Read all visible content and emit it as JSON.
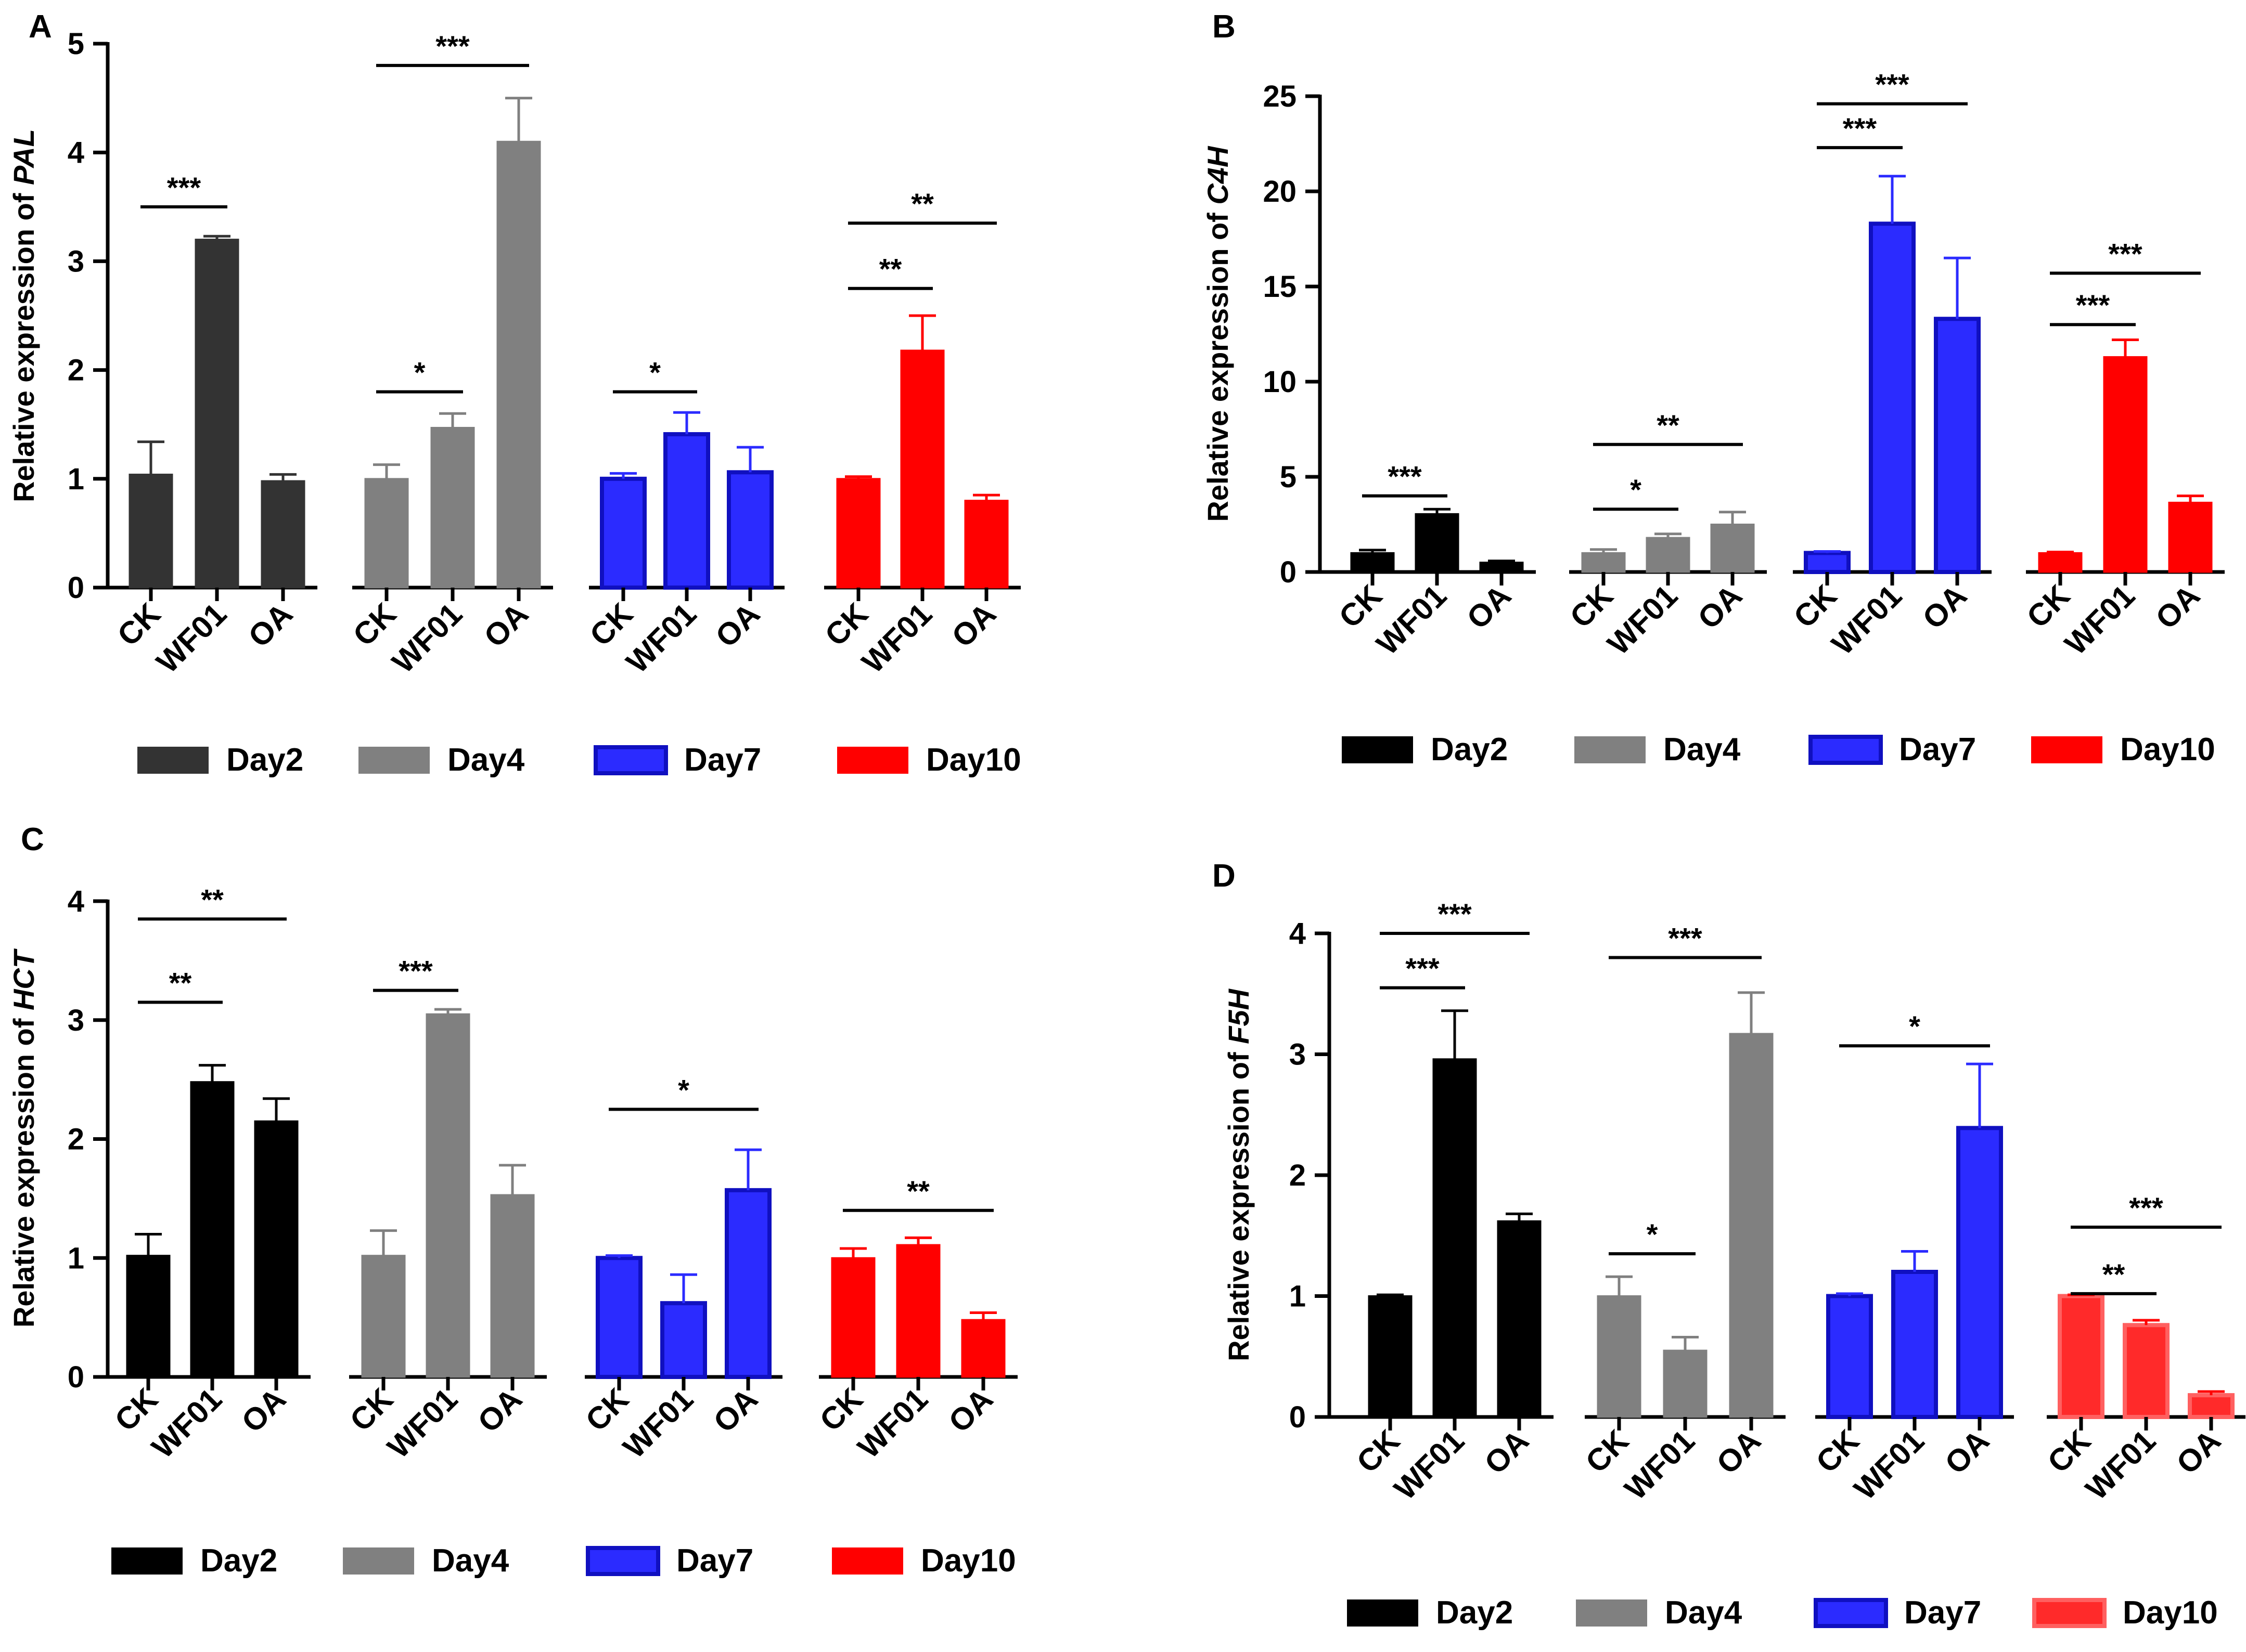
{
  "chart_data": [
    {
      "panel": "A",
      "type": "bar",
      "ylabel_prefix": "Relative expression of ",
      "gene": "PAL",
      "ylim": [
        0,
        5
      ],
      "yticks": [
        0,
        1,
        2,
        3,
        4,
        5
      ],
      "categories": [
        "CK",
        "WF01",
        "OA"
      ],
      "series": [
        {
          "name": "Day2",
          "color": "#333333",
          "fill": "solid",
          "values": [
            1.04,
            3.2,
            0.98
          ],
          "errors": [
            0.3,
            0.03,
            0.06
          ]
        },
        {
          "name": "Day4",
          "color": "#808080",
          "fill": "solid",
          "values": [
            1.0,
            1.47,
            4.1
          ],
          "errors": [
            0.13,
            0.13,
            0.4
          ]
        },
        {
          "name": "Day7",
          "color": "#2b2bff",
          "fill": "outline",
          "values": [
            1.0,
            1.41,
            1.06
          ],
          "errors": [
            0.05,
            0.2,
            0.23
          ]
        },
        {
          "name": "Day10",
          "color": "#ff0000",
          "fill": "solid",
          "values": [
            1.0,
            2.18,
            0.8
          ],
          "errors": [
            0.02,
            0.32,
            0.05
          ]
        }
      ],
      "significance": [
        {
          "group": 0,
          "from": 0,
          "to": 1,
          "y": 3.5,
          "label": "***"
        },
        {
          "group": 1,
          "from": 0,
          "to": 1,
          "y": 1.8,
          "label": "*"
        },
        {
          "group": 1,
          "from": 0,
          "to": 2,
          "y": 4.8,
          "label": "***"
        },
        {
          "group": 2,
          "from": 0,
          "to": 1,
          "y": 1.8,
          "label": "*"
        },
        {
          "group": 3,
          "from": 0,
          "to": 1,
          "y": 2.75,
          "label": "**"
        },
        {
          "group": 3,
          "from": 0,
          "to": 2,
          "y": 3.35,
          "label": "**"
        }
      ]
    },
    {
      "panel": "B",
      "type": "bar",
      "ylabel_prefix": "Relative expression of ",
      "gene": "C4H",
      "ylim": [
        0,
        25
      ],
      "yticks": [
        0,
        5,
        10,
        15,
        20,
        25
      ],
      "categories": [
        "CK",
        "WF01",
        "OA"
      ],
      "series": [
        {
          "name": "Day2",
          "color": "#000000",
          "fill": "solid",
          "values": [
            1.0,
            3.05,
            0.5
          ],
          "errors": [
            0.15,
            0.25,
            0.08
          ]
        },
        {
          "name": "Day4",
          "color": "#808080",
          "fill": "solid",
          "values": [
            1.0,
            1.8,
            2.5
          ],
          "errors": [
            0.18,
            0.2,
            0.65
          ]
        },
        {
          "name": "Day7",
          "color": "#2b2bff",
          "fill": "outline",
          "values": [
            1.0,
            18.3,
            13.3
          ],
          "errors": [
            0.08,
            2.5,
            3.2
          ]
        },
        {
          "name": "Day10",
          "color": "#ff0000",
          "fill": "solid",
          "values": [
            1.0,
            11.3,
            3.65
          ],
          "errors": [
            0.05,
            0.9,
            0.35
          ]
        }
      ],
      "significance": [
        {
          "group": 0,
          "from": 0,
          "to": 1,
          "y": 4.0,
          "label": "***"
        },
        {
          "group": 1,
          "from": 0,
          "to": 1,
          "y": 3.3,
          "label": "*"
        },
        {
          "group": 1,
          "from": 0,
          "to": 2,
          "y": 6.7,
          "label": "**"
        },
        {
          "group": 2,
          "from": 0,
          "to": 1,
          "y": 22.3,
          "label": "***"
        },
        {
          "group": 2,
          "from": 0,
          "to": 2,
          "y": 24.6,
          "label": "***"
        },
        {
          "group": 3,
          "from": 0,
          "to": 1,
          "y": 13.0,
          "label": "***"
        },
        {
          "group": 3,
          "from": 0,
          "to": 2,
          "y": 15.7,
          "label": "***"
        }
      ]
    },
    {
      "panel": "C",
      "type": "bar",
      "ylabel_prefix": "Relative expression of ",
      "gene": "HCT",
      "ylim": [
        0,
        4
      ],
      "yticks": [
        0,
        1,
        2,
        3,
        4
      ],
      "categories": [
        "CK",
        "WF01",
        "OA"
      ],
      "series": [
        {
          "name": "Day2",
          "color": "#000000",
          "fill": "solid",
          "values": [
            1.02,
            2.48,
            2.15
          ],
          "errors": [
            0.18,
            0.14,
            0.19
          ]
        },
        {
          "name": "Day4",
          "color": "#808080",
          "fill": "solid",
          "values": [
            1.02,
            3.05,
            1.53
          ],
          "errors": [
            0.21,
            0.04,
            0.25
          ]
        },
        {
          "name": "Day7",
          "color": "#2b2bff",
          "fill": "outline",
          "values": [
            1.0,
            0.62,
            1.57
          ],
          "errors": [
            0.02,
            0.24,
            0.34
          ]
        },
        {
          "name": "Day10",
          "color": "#ff0000",
          "fill": "solid",
          "values": [
            1.0,
            1.11,
            0.48
          ],
          "errors": [
            0.08,
            0.06,
            0.06
          ]
        }
      ],
      "significance": [
        {
          "group": 0,
          "from": 0,
          "to": 1,
          "y": 3.15,
          "label": "**"
        },
        {
          "group": 0,
          "from": 0,
          "to": 2,
          "y": 3.85,
          "label": "**"
        },
        {
          "group": 1,
          "from": 0,
          "to": 1,
          "y": 3.25,
          "label": "***"
        },
        {
          "group": 2,
          "from": 0,
          "to": 2,
          "y": 2.25,
          "label": "*"
        },
        {
          "group": 3,
          "from": 0,
          "to": 2,
          "y": 1.4,
          "label": "**"
        }
      ]
    },
    {
      "panel": "D",
      "type": "bar",
      "ylabel_prefix": "Relative expression of ",
      "gene": "F5H",
      "ylim": [
        0,
        4
      ],
      "yticks": [
        0,
        1,
        2,
        3,
        4
      ],
      "categories": [
        "CK",
        "WF01",
        "OA"
      ],
      "series": [
        {
          "name": "Day2",
          "color": "#000000",
          "fill": "solid",
          "values": [
            1.0,
            2.96,
            1.62
          ],
          "errors": [
            0.01,
            0.4,
            0.06
          ]
        },
        {
          "name": "Day4",
          "color": "#808080",
          "fill": "solid",
          "values": [
            1.0,
            0.55,
            3.17
          ],
          "errors": [
            0.16,
            0.11,
            0.34
          ]
        },
        {
          "name": "Day7",
          "color": "#2b2bff",
          "fill": "outline",
          "values": [
            1.0,
            1.2,
            2.39
          ],
          "errors": [
            0.02,
            0.17,
            0.53
          ]
        },
        {
          "name": "Day10",
          "color": "#ff0000",
          "fill": "outline-light",
          "values": [
            1.0,
            0.76,
            0.18
          ],
          "errors": [
            0.01,
            0.04,
            0.03
          ]
        }
      ],
      "significance": [
        {
          "group": 0,
          "from": 0,
          "to": 1,
          "y": 3.55,
          "label": "***"
        },
        {
          "group": 0,
          "from": 0,
          "to": 2,
          "y": 4.0,
          "label": "***"
        },
        {
          "group": 1,
          "from": 0,
          "to": 1,
          "y": 1.35,
          "label": "*"
        },
        {
          "group": 1,
          "from": 0,
          "to": 2,
          "y": 3.8,
          "label": "***"
        },
        {
          "group": 2,
          "from": 0,
          "to": 2,
          "y": 3.07,
          "label": "*"
        },
        {
          "group": 3,
          "from": 0,
          "to": 1,
          "y": 1.02,
          "label": "**"
        },
        {
          "group": 3,
          "from": 0,
          "to": 2,
          "y": 1.57,
          "label": "***"
        }
      ]
    }
  ]
}
